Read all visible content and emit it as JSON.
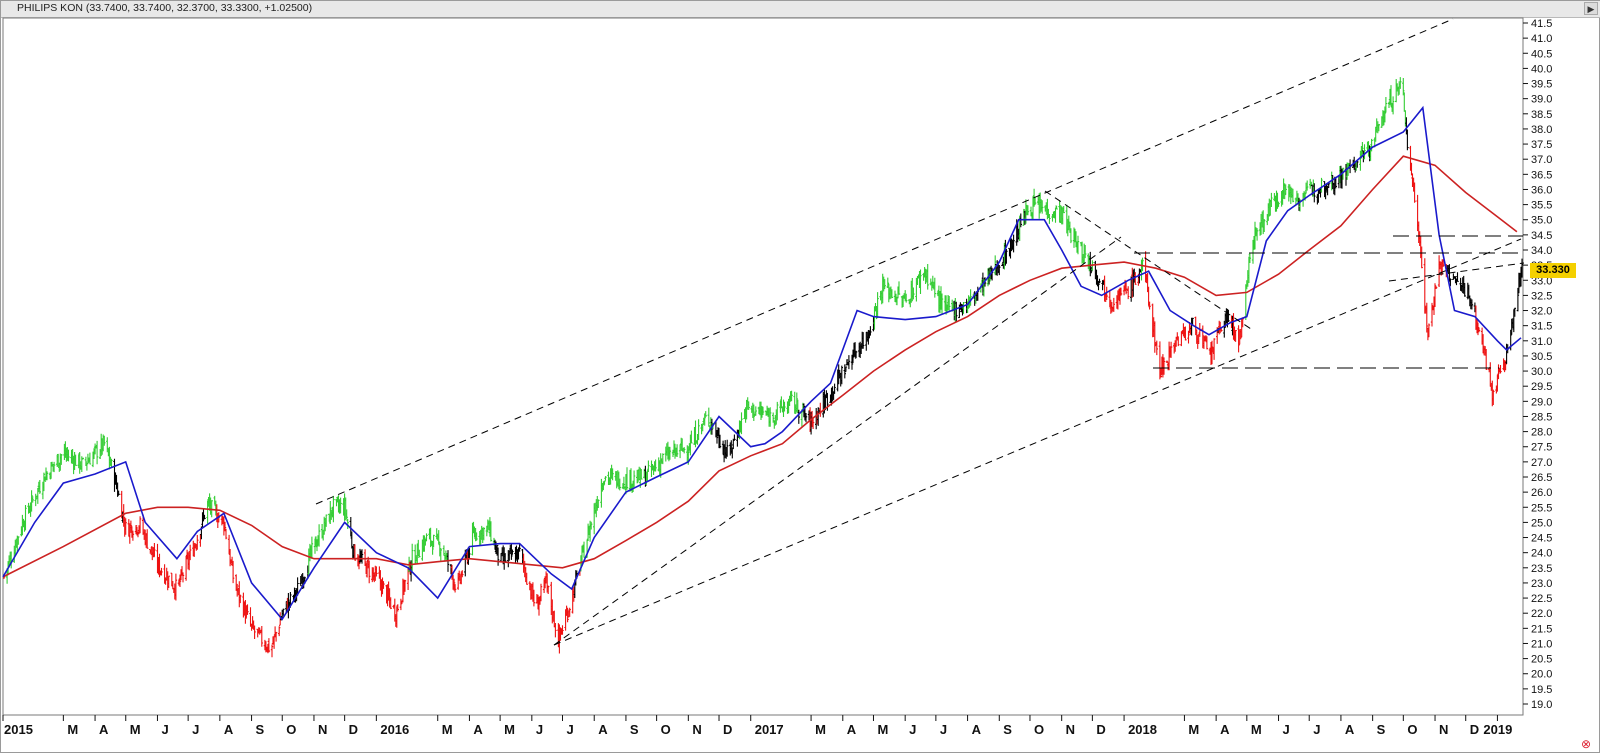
{
  "title_bar": {
    "text": "PHILIPS KON (33.7400, 33.7400, 32.3700, 33.3300, +1.02500)"
  },
  "last_price": "33.330",
  "icons": {
    "scroll_right": "triangle-right-icon",
    "close": "circle-x-icon"
  },
  "colors": {
    "up_bars": "#33cc33",
    "down_bars": "#ee1111",
    "neutral_bars": "#000000",
    "fast_ma": "#1a1acc",
    "slow_ma": "#cc2222",
    "trendlines": "#000000",
    "price_label_bg": "#f4d000"
  },
  "chart_data": {
    "type": "line",
    "x_labels": [
      "2015",
      "M",
      "A",
      "M",
      "J",
      "J",
      "A",
      "S",
      "O",
      "N",
      "D",
      "2016",
      "M",
      "A",
      "M",
      "J",
      "J",
      "A",
      "S",
      "O",
      "N",
      "D",
      "2017",
      "M",
      "A",
      "M",
      "J",
      "J",
      "A",
      "S",
      "O",
      "N",
      "D",
      "2018",
      "M",
      "A",
      "M",
      "J",
      "J",
      "A",
      "S",
      "O",
      "N",
      "D",
      "2019"
    ],
    "y_ticks": [
      "19.0",
      "19.5",
      "20.0",
      "20.5",
      "21.0",
      "21.5",
      "22.0",
      "22.5",
      "23.0",
      "23.5",
      "24.0",
      "24.5",
      "25.0",
      "25.5",
      "26.0",
      "26.5",
      "27.0",
      "27.5",
      "28.0",
      "28.5",
      "29.0",
      "29.5",
      "30.0",
      "30.5",
      "31.0",
      "31.5",
      "32.0",
      "32.5",
      "33.0",
      "33.5",
      "34.0",
      "34.5",
      "35.0",
      "35.5",
      "36.0",
      "36.5",
      "37.0",
      "37.5",
      "38.0",
      "38.5",
      "39.0",
      "39.5",
      "40.0",
      "40.5",
      "41.0",
      "41.5"
    ],
    "ylim": [
      18.75,
      41.85
    ],
    "xlim": [
      "2015-01-01",
      "2019-01-26"
    ],
    "grid": false,
    "last_value": 33.33,
    "series": [
      {
        "color": "bars",
        "x": [
          "2015-01-02",
          "2015-01-20",
          "2015-02-10",
          "2015-03-01",
          "2015-03-20",
          "2015-04-10",
          "2015-04-20",
          "2015-05-01",
          "2015-05-15",
          "2015-06-01",
          "2015-06-20",
          "2015-07-10",
          "2015-07-20",
          "2015-08-05",
          "2015-08-15",
          "2015-09-01",
          "2015-09-20",
          "2015-10-01",
          "2015-10-15",
          "2015-11-01",
          "2015-11-20",
          "2015-12-01",
          "2015-12-10",
          "2016-01-05",
          "2016-01-20",
          "2016-02-05",
          "2016-02-20",
          "2016-03-05",
          "2016-03-20",
          "2016-04-05",
          "2016-04-20",
          "2016-05-01",
          "2016-05-20",
          "2016-06-05",
          "2016-06-15",
          "2016-06-27",
          "2016-07-10",
          "2016-07-25",
          "2016-08-10",
          "2016-09-01",
          "2016-09-20",
          "2016-10-10",
          "2016-11-01",
          "2016-11-20",
          "2016-12-10",
          "2016-12-28",
          "2017-01-20",
          "2017-02-10",
          "2017-03-01",
          "2017-03-20",
          "2017-04-10",
          "2017-04-25",
          "2017-05-10",
          "2017-06-01",
          "2017-06-20",
          "2017-07-10",
          "2017-08-01",
          "2017-08-20",
          "2017-09-10",
          "2017-10-01",
          "2017-10-20",
          "2017-11-01",
          "2017-11-15",
          "2017-12-01",
          "2017-12-20",
          "2018-01-05",
          "2018-01-20",
          "2018-02-05",
          "2018-02-20",
          "2018-03-10",
          "2018-03-26",
          "2018-04-10",
          "2018-04-25",
          "2018-05-05",
          "2018-05-20",
          "2018-06-05",
          "2018-06-20",
          "2018-07-10",
          "2018-07-25",
          "2018-08-10",
          "2018-08-30",
          "2018-09-15",
          "2018-09-30",
          "2018-10-05",
          "2018-10-15",
          "2018-10-25",
          "2018-11-05",
          "2018-11-20",
          "2018-12-05",
          "2018-12-20",
          "2018-12-27",
          "2019-01-10",
          "2019-01-25"
        ],
        "y": [
          23.2,
          25.0,
          26.5,
          27.3,
          26.9,
          27.6,
          26.5,
          24.8,
          24.9,
          23.6,
          22.8,
          24.5,
          25.6,
          25.0,
          23.0,
          21.5,
          20.8,
          22.0,
          22.7,
          24.2,
          25.5,
          25.5,
          24.0,
          23.0,
          22.0,
          23.8,
          24.5,
          24.2,
          22.8,
          24.6,
          24.8,
          23.7,
          24.0,
          22.2,
          23.0,
          21.1,
          22.5,
          24.5,
          26.5,
          26.4,
          26.5,
          27.2,
          27.5,
          28.5,
          27.2,
          28.8,
          28.5,
          29.0,
          28.3,
          29.3,
          30.5,
          31.2,
          32.8,
          32.3,
          33.3,
          32.0,
          32.2,
          33.0,
          34.0,
          35.5,
          35.3,
          35.2,
          34.2,
          33.5,
          32.3,
          32.7,
          33.5,
          30.0,
          31.0,
          31.5,
          30.5,
          31.8,
          31.0,
          34.2,
          35.2,
          36.0,
          35.7,
          36.1,
          36.3,
          36.7,
          37.4,
          38.8,
          39.5,
          37.5,
          35.0,
          31.2,
          33.5,
          33.0,
          32.5,
          30.5,
          29.3,
          30.5,
          33.4
        ]
      },
      {
        "color": "fast_ma",
        "x": [
          "2015-01-01",
          "2015-02-01",
          "2015-03-01",
          "2015-04-01",
          "2015-05-01",
          "2015-05-20",
          "2015-06-20",
          "2015-07-10",
          "2015-08-05",
          "2015-09-01",
          "2015-10-01",
          "2015-11-01",
          "2015-12-01",
          "2016-01-01",
          "2016-02-01",
          "2016-03-01",
          "2016-04-01",
          "2016-05-01",
          "2016-05-20",
          "2016-06-20",
          "2016-07-10",
          "2016-08-01",
          "2016-09-01",
          "2016-10-01",
          "2016-11-01",
          "2016-12-01",
          "2017-01-01",
          "2017-01-15",
          "2017-02-01",
          "2017-03-01",
          "2017-03-20",
          "2017-04-15",
          "2017-05-01",
          "2017-06-01",
          "2017-07-01",
          "2017-08-01",
          "2017-09-01",
          "2017-09-20",
          "2017-10-15",
          "2017-11-01",
          "2017-11-20",
          "2017-12-10",
          "2018-01-05",
          "2018-01-25",
          "2018-02-15",
          "2018-03-10",
          "2018-03-25",
          "2018-04-15",
          "2018-05-01",
          "2018-05-20",
          "2018-06-10",
          "2018-07-01",
          "2018-08-01",
          "2018-09-01",
          "2018-10-01",
          "2018-10-20",
          "2018-11-05",
          "2018-11-20",
          "2018-12-10",
          "2019-01-01",
          "2019-01-10",
          "2019-01-24"
        ],
        "y": [
          23.2,
          25.0,
          26.3,
          26.6,
          27.0,
          25.0,
          23.8,
          24.7,
          25.3,
          23.0,
          21.8,
          23.5,
          25.0,
          24.0,
          23.5,
          22.5,
          24.2,
          24.3,
          24.3,
          23.3,
          22.8,
          24.5,
          26.0,
          26.5,
          27.0,
          28.5,
          27.5,
          27.6,
          28.0,
          29.0,
          29.6,
          32.0,
          31.8,
          31.7,
          31.8,
          32.2,
          33.6,
          35.0,
          35.0,
          34.0,
          32.8,
          32.5,
          33.0,
          33.3,
          32.0,
          31.5,
          31.2,
          31.6,
          31.8,
          34.3,
          35.3,
          35.8,
          36.5,
          37.4,
          37.9,
          38.7,
          34.5,
          32.0,
          31.8,
          31.0,
          30.7,
          31.1
        ]
      },
      {
        "color": "slow_ma",
        "x": [
          "2015-01-01",
          "2015-03-01",
          "2015-05-01",
          "2015-06-01",
          "2015-07-01",
          "2015-08-01",
          "2015-09-01",
          "2015-10-01",
          "2015-11-01",
          "2015-12-01",
          "2016-01-01",
          "2016-02-01",
          "2016-03-01",
          "2016-04-01",
          "2016-05-01",
          "2016-06-01",
          "2016-07-01",
          "2016-08-01",
          "2016-09-01",
          "2016-10-01",
          "2016-11-01",
          "2016-12-01",
          "2017-01-01",
          "2017-02-01",
          "2017-03-01",
          "2017-04-01",
          "2017-05-01",
          "2017-06-01",
          "2017-07-01",
          "2017-08-01",
          "2017-09-01",
          "2017-10-01",
          "2017-11-01",
          "2017-12-01",
          "2018-01-01",
          "2018-02-01",
          "2018-03-01",
          "2018-04-01",
          "2018-05-01",
          "2018-06-01",
          "2018-07-01",
          "2018-08-01",
          "2018-09-01",
          "2018-10-01",
          "2018-11-01",
          "2018-12-01",
          "2019-01-01",
          "2019-01-20"
        ],
        "y": [
          23.2,
          24.2,
          25.3,
          25.5,
          25.5,
          25.4,
          24.9,
          24.2,
          23.8,
          23.8,
          23.8,
          23.6,
          23.7,
          23.8,
          23.7,
          23.6,
          23.5,
          23.8,
          24.4,
          25.0,
          25.7,
          26.7,
          27.2,
          27.6,
          28.4,
          29.2,
          30.0,
          30.7,
          31.3,
          31.8,
          32.5,
          33.0,
          33.4,
          33.5,
          33.6,
          33.4,
          33.1,
          32.5,
          32.6,
          33.2,
          34.0,
          34.8,
          36.0,
          37.1,
          36.8,
          35.9,
          35.1,
          34.6
        ]
      }
    ]
  }
}
